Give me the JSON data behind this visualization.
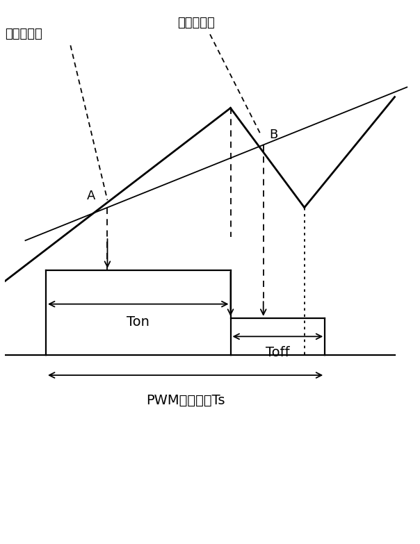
{
  "title": "PWM周期时间Ts",
  "label_current_instant": "电流瞬时値",
  "label_current_avg": "电流平均値",
  "label_A": "A",
  "label_B": "B",
  "label_Ton": "Ton",
  "label_Toff": "Toff",
  "bg_color": "#ffffff",
  "fig_width": 6.04,
  "fig_height": 7.83,
  "dpi": 100
}
